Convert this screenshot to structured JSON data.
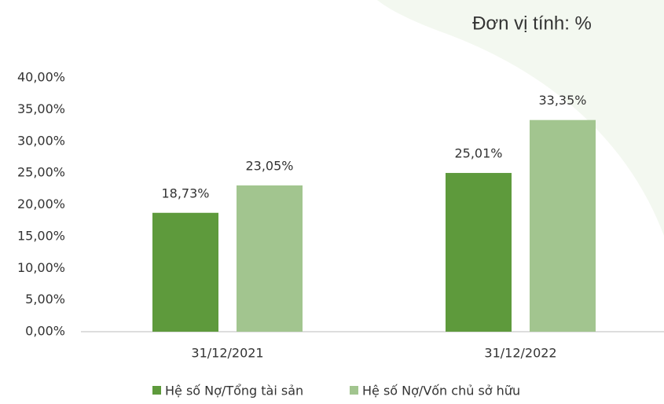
{
  "chart_data": {
    "type": "bar",
    "title": "Đơn vị tính: %",
    "categories": [
      "31/12/2021",
      "31/12/2022"
    ],
    "series": [
      {
        "name": "Hệ số Nợ/Tổng tài sản",
        "color": "#5e9a3c",
        "values": [
          18.73,
          25.01
        ],
        "value_labels": [
          "18,73%",
          "25,01%"
        ]
      },
      {
        "name": "Hệ số Nợ/Vốn chủ sở hữu",
        "color": "#a2c58f",
        "values": [
          23.05,
          33.35
        ],
        "value_labels": [
          "23,05%",
          "33,35%"
        ]
      }
    ],
    "ylim": [
      0,
      40
    ],
    "yticks": [
      {
        "value": 0,
        "label": "0,00%"
      },
      {
        "value": 5,
        "label": "5,00%"
      },
      {
        "value": 10,
        "label": "10,00%"
      },
      {
        "value": 15,
        "label": "15,00%"
      },
      {
        "value": 20,
        "label": "20,00%"
      },
      {
        "value": 25,
        "label": "25,00%"
      },
      {
        "value": 30,
        "label": "30,00%"
      },
      {
        "value": 35,
        "label": "35,00%"
      },
      {
        "value": 40,
        "label": "40,00%"
      }
    ],
    "grid": false,
    "legend": "bottom"
  }
}
